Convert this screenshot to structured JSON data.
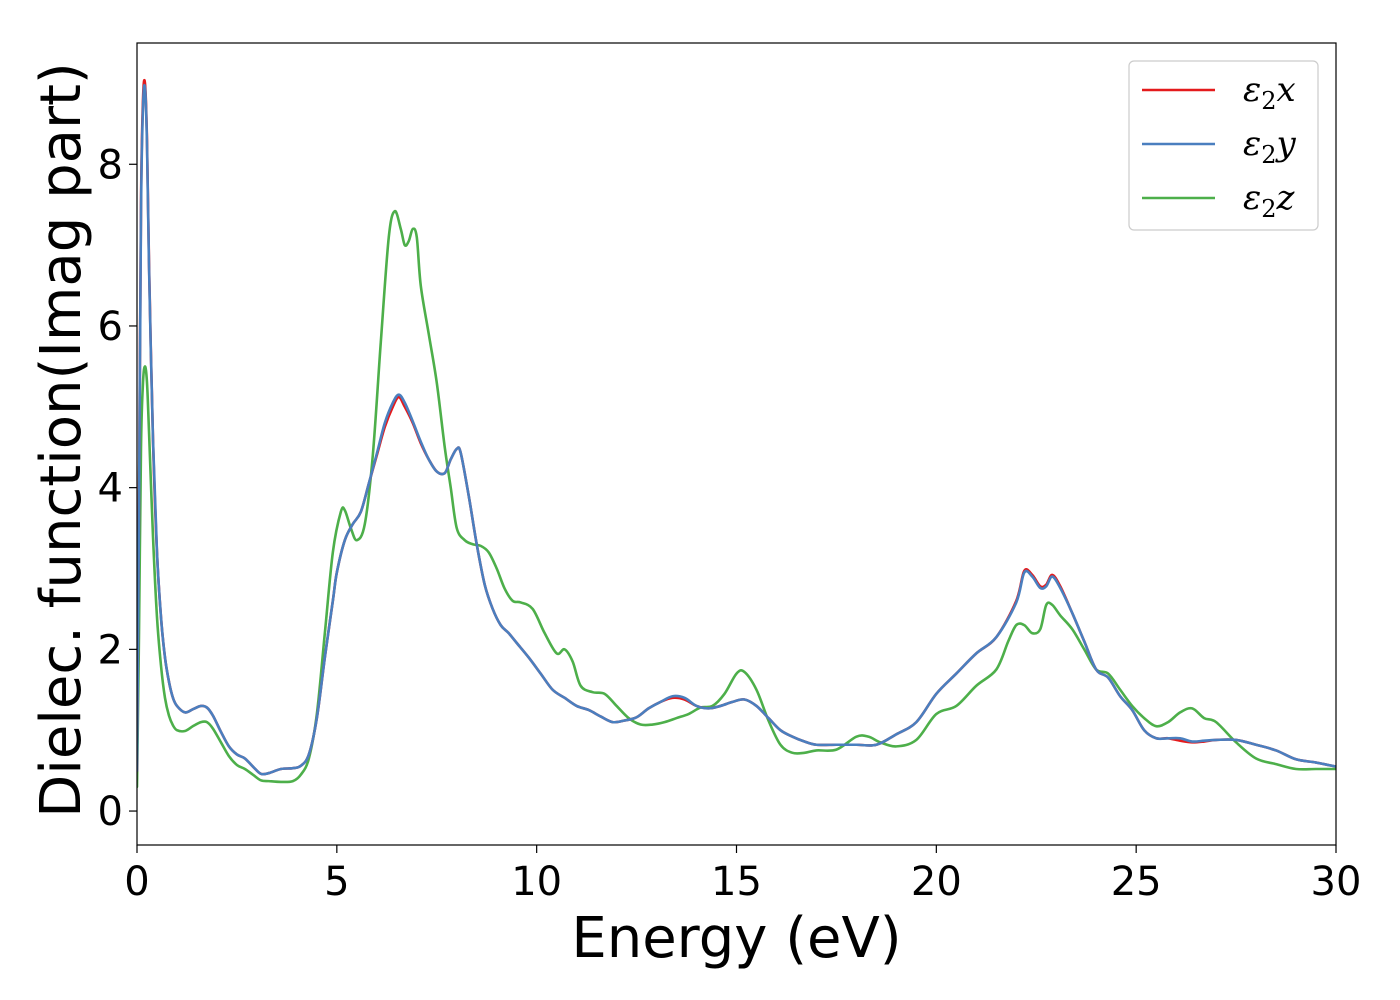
{
  "chart_data": {
    "type": "line",
    "xlabel": "Energy (eV)",
    "ylabel": "Dielec. function(Imag part)",
    "xlim": [
      0,
      30
    ],
    "ylim": [
      -0.42,
      9.5
    ],
    "xticks": [
      0,
      5,
      10,
      15,
      20,
      25,
      30
    ],
    "yticks": [
      0,
      2,
      4,
      6,
      8
    ],
    "grid": false,
    "legend_position": "top-right",
    "series": [
      {
        "name": "ε2x",
        "legend_base": "ε",
        "legend_sub": "2",
        "legend_var": "x",
        "color": "#e41a1c",
        "x": [
          0,
          0.05,
          0.1,
          0.15,
          0.2,
          0.25,
          0.3,
          0.4,
          0.5,
          0.6,
          0.7,
          0.8,
          0.9,
          1.0,
          1.2,
          1.4,
          1.6,
          1.75,
          1.9,
          2.1,
          2.3,
          2.5,
          2.7,
          2.9,
          3.1,
          3.3,
          3.6,
          3.9,
          4.1,
          4.3,
          4.5,
          4.7,
          4.9,
          5.0,
          5.2,
          5.4,
          5.6,
          5.8,
          6.0,
          6.2,
          6.4,
          6.55,
          6.7,
          6.9,
          7.1,
          7.3,
          7.5,
          7.7,
          7.85,
          8.0,
          8.1,
          8.3,
          8.5,
          8.7,
          8.9,
          9.1,
          9.3,
          9.5,
          9.8,
          10.1,
          10.4,
          10.7,
          11.0,
          11.3,
          11.6,
          11.9,
          12.2,
          12.5,
          12.8,
          13.1,
          13.4,
          13.7,
          14.0,
          14.3,
          14.6,
          14.9,
          15.2,
          15.5,
          15.8,
          16.1,
          16.4,
          16.7,
          17.0,
          17.5,
          18.0,
          18.5,
          19.0,
          19.5,
          20.0,
          20.5,
          21.0,
          21.5,
          22.0,
          22.2,
          22.4,
          22.6,
          22.75,
          22.9,
          23.1,
          23.4,
          23.7,
          24.0,
          24.3,
          24.6,
          24.9,
          25.2,
          25.5,
          25.8,
          26.1,
          26.4,
          26.7,
          27.0,
          27.5,
          28.0,
          28.5,
          29.0,
          29.5,
          30.0
        ],
        "y": [
          0.5,
          3.8,
          7.5,
          8.8,
          9.0,
          8.3,
          6.8,
          4.6,
          3.2,
          2.4,
          1.9,
          1.6,
          1.4,
          1.3,
          1.22,
          1.26,
          1.3,
          1.28,
          1.18,
          0.98,
          0.8,
          0.7,
          0.65,
          0.55,
          0.46,
          0.47,
          0.52,
          0.53,
          0.56,
          0.7,
          1.15,
          1.9,
          2.6,
          2.95,
          3.35,
          3.55,
          3.7,
          4.05,
          4.4,
          4.75,
          5.0,
          5.12,
          5.0,
          4.8,
          4.55,
          4.35,
          4.2,
          4.18,
          4.35,
          4.48,
          4.43,
          3.9,
          3.3,
          2.8,
          2.5,
          2.3,
          2.2,
          2.08,
          1.9,
          1.7,
          1.5,
          1.4,
          1.3,
          1.25,
          1.17,
          1.1,
          1.12,
          1.16,
          1.27,
          1.35,
          1.4,
          1.38,
          1.3,
          1.27,
          1.3,
          1.35,
          1.38,
          1.3,
          1.15,
          1.0,
          0.92,
          0.86,
          0.82,
          0.82,
          0.82,
          0.82,
          0.95,
          1.1,
          1.45,
          1.7,
          1.95,
          2.15,
          2.6,
          2.97,
          2.92,
          2.78,
          2.8,
          2.92,
          2.78,
          2.45,
          2.1,
          1.75,
          1.65,
          1.42,
          1.25,
          1.0,
          0.9,
          0.9,
          0.87,
          0.85,
          0.86,
          0.88,
          0.88,
          0.82,
          0.75,
          0.64,
          0.6,
          0.55
        ]
      },
      {
        "name": "ε2y",
        "legend_base": "ε",
        "legend_sub": "2",
        "legend_var": "y",
        "color": "#4a7fbf",
        "x": [
          0,
          0.05,
          0.1,
          0.15,
          0.2,
          0.25,
          0.3,
          0.4,
          0.5,
          0.6,
          0.7,
          0.8,
          0.9,
          1.0,
          1.2,
          1.4,
          1.6,
          1.75,
          1.9,
          2.1,
          2.3,
          2.5,
          2.7,
          2.9,
          3.1,
          3.3,
          3.6,
          3.9,
          4.1,
          4.3,
          4.5,
          4.7,
          4.9,
          5.0,
          5.2,
          5.4,
          5.6,
          5.8,
          6.0,
          6.2,
          6.4,
          6.55,
          6.7,
          6.9,
          7.1,
          7.3,
          7.5,
          7.7,
          7.85,
          8.0,
          8.1,
          8.3,
          8.5,
          8.7,
          8.9,
          9.1,
          9.3,
          9.5,
          9.8,
          10.1,
          10.4,
          10.7,
          11.0,
          11.3,
          11.6,
          11.9,
          12.2,
          12.5,
          12.8,
          13.1,
          13.4,
          13.7,
          14.0,
          14.3,
          14.6,
          14.9,
          15.2,
          15.5,
          15.8,
          16.1,
          16.4,
          16.7,
          17.0,
          17.5,
          18.0,
          18.5,
          19.0,
          19.5,
          20.0,
          20.5,
          21.0,
          21.5,
          22.0,
          22.2,
          22.4,
          22.6,
          22.75,
          22.9,
          23.1,
          23.4,
          23.7,
          24.0,
          24.3,
          24.6,
          24.9,
          25.2,
          25.5,
          25.8,
          26.1,
          26.4,
          26.7,
          27.0,
          27.5,
          28.0,
          28.5,
          29.0,
          29.5,
          30.0
        ],
        "y": [
          0.5,
          3.7,
          7.4,
          8.7,
          8.95,
          8.25,
          6.75,
          4.6,
          3.2,
          2.4,
          1.9,
          1.6,
          1.4,
          1.3,
          1.22,
          1.26,
          1.3,
          1.28,
          1.18,
          0.98,
          0.8,
          0.7,
          0.65,
          0.55,
          0.46,
          0.47,
          0.52,
          0.53,
          0.56,
          0.7,
          1.15,
          1.9,
          2.6,
          2.95,
          3.35,
          3.55,
          3.7,
          4.05,
          4.42,
          4.8,
          5.05,
          5.15,
          5.05,
          4.82,
          4.57,
          4.35,
          4.2,
          4.18,
          4.35,
          4.48,
          4.43,
          3.9,
          3.3,
          2.8,
          2.5,
          2.3,
          2.2,
          2.08,
          1.9,
          1.7,
          1.5,
          1.4,
          1.3,
          1.25,
          1.17,
          1.1,
          1.12,
          1.16,
          1.27,
          1.35,
          1.42,
          1.4,
          1.3,
          1.27,
          1.3,
          1.35,
          1.38,
          1.3,
          1.15,
          1.0,
          0.92,
          0.86,
          0.82,
          0.82,
          0.82,
          0.82,
          0.95,
          1.1,
          1.45,
          1.7,
          1.95,
          2.15,
          2.58,
          2.95,
          2.9,
          2.76,
          2.78,
          2.9,
          2.76,
          2.45,
          2.1,
          1.75,
          1.65,
          1.42,
          1.25,
          1.0,
          0.9,
          0.9,
          0.9,
          0.86,
          0.87,
          0.88,
          0.88,
          0.82,
          0.75,
          0.64,
          0.6,
          0.55
        ]
      },
      {
        "name": "ε2z",
        "legend_base": "ε",
        "legend_sub": "2",
        "legend_var": "z",
        "color": "#4daf4a",
        "x": [
          0,
          0.05,
          0.1,
          0.15,
          0.2,
          0.25,
          0.3,
          0.4,
          0.5,
          0.6,
          0.7,
          0.8,
          0.9,
          1.0,
          1.2,
          1.4,
          1.6,
          1.75,
          1.9,
          2.1,
          2.3,
          2.5,
          2.7,
          2.9,
          3.1,
          3.3,
          3.6,
          3.9,
          4.1,
          4.3,
          4.5,
          4.7,
          4.9,
          5.1,
          5.2,
          5.35,
          5.5,
          5.7,
          5.9,
          6.1,
          6.3,
          6.45,
          6.6,
          6.7,
          6.8,
          6.9,
          7.0,
          7.1,
          7.3,
          7.5,
          7.7,
          7.85,
          8.0,
          8.2,
          8.4,
          8.6,
          8.8,
          9.0,
          9.2,
          9.4,
          9.6,
          9.9,
          10.2,
          10.5,
          10.7,
          10.9,
          11.1,
          11.4,
          11.7,
          12.0,
          12.3,
          12.6,
          12.9,
          13.2,
          13.5,
          13.8,
          14.1,
          14.4,
          14.7,
          15.0,
          15.2,
          15.5,
          15.8,
          16.1,
          16.4,
          16.7,
          17.0,
          17.5,
          18.0,
          18.3,
          18.6,
          19.0,
          19.5,
          20.0,
          20.5,
          21.0,
          21.5,
          21.8,
          22.0,
          22.2,
          22.4,
          22.6,
          22.75,
          22.9,
          23.1,
          23.4,
          23.7,
          24.0,
          24.3,
          24.6,
          24.9,
          25.2,
          25.5,
          25.8,
          26.1,
          26.4,
          26.7,
          27.0,
          27.5,
          28.0,
          28.5,
          29.0,
          29.5,
          30.0
        ],
        "y": [
          0.3,
          2.2,
          4.5,
          5.3,
          5.5,
          5.3,
          4.7,
          3.4,
          2.4,
          1.8,
          1.4,
          1.18,
          1.06,
          1.0,
          0.99,
          1.05,
          1.1,
          1.1,
          1.02,
          0.85,
          0.68,
          0.57,
          0.52,
          0.45,
          0.38,
          0.37,
          0.36,
          0.37,
          0.45,
          0.65,
          1.2,
          2.2,
          3.2,
          3.7,
          3.72,
          3.5,
          3.35,
          3.55,
          4.4,
          5.8,
          7.1,
          7.42,
          7.2,
          7.0,
          7.05,
          7.2,
          7.1,
          6.5,
          5.9,
          5.3,
          4.5,
          4.0,
          3.5,
          3.35,
          3.3,
          3.28,
          3.2,
          3.0,
          2.75,
          2.6,
          2.58,
          2.5,
          2.2,
          1.95,
          2.0,
          1.85,
          1.55,
          1.47,
          1.45,
          1.3,
          1.15,
          1.07,
          1.07,
          1.1,
          1.15,
          1.2,
          1.28,
          1.3,
          1.45,
          1.7,
          1.72,
          1.5,
          1.12,
          0.82,
          0.72,
          0.72,
          0.75,
          0.76,
          0.92,
          0.92,
          0.85,
          0.8,
          0.88,
          1.2,
          1.3,
          1.55,
          1.75,
          2.1,
          2.3,
          2.3,
          2.2,
          2.25,
          2.55,
          2.55,
          2.42,
          2.25,
          2.0,
          1.75,
          1.7,
          1.5,
          1.3,
          1.15,
          1.05,
          1.1,
          1.22,
          1.27,
          1.15,
          1.1,
          0.85,
          0.65,
          0.58,
          0.52,
          0.52,
          0.52
        ]
      }
    ]
  }
}
